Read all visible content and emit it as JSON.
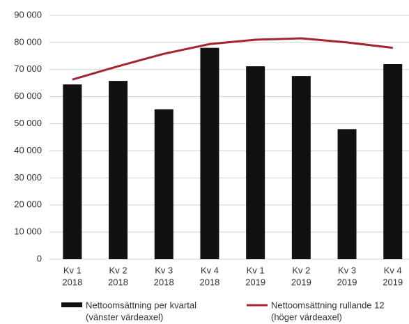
{
  "chart_data": {
    "type": "bar_line",
    "categories": [
      [
        "Kv 1",
        "2018"
      ],
      [
        "Kv 2",
        "2018"
      ],
      [
        "Kv 3",
        "2018"
      ],
      [
        "Kv 4",
        "2018"
      ],
      [
        "Kv 1",
        "2019"
      ],
      [
        "Kv 2",
        "2019"
      ],
      [
        "Kv 3",
        "2019"
      ],
      [
        "Kv 4",
        "2019"
      ]
    ],
    "series": [
      {
        "name": "Nettoomsättning per kvartal",
        "note": "(vänster värdeaxel)",
        "type": "bar",
        "color": "#111111",
        "values": [
          64500,
          65800,
          55300,
          78000,
          71200,
          67600,
          48000,
          72000
        ]
      },
      {
        "name": "Nettoomsättning rullande 12",
        "note": "(höger värdeaxel)",
        "type": "line",
        "color": "#a3262e",
        "values": [
          66300,
          71200,
          75800,
          79400,
          81000,
          81500,
          80000,
          78000
        ]
      }
    ],
    "ylim": [
      0,
      90000
    ],
    "yticks": [
      0,
      {
        "value": 10000,
        "label": "10 000"
      },
      {
        "value": 20000,
        "label": "20 000"
      },
      {
        "value": 30000,
        "label": "30 000"
      },
      {
        "value": 40000,
        "label": "40 000"
      },
      {
        "value": 50000,
        "label": "50 000"
      },
      {
        "value": 60000,
        "label": "60 000"
      },
      {
        "value": 70000,
        "label": "70 000"
      },
      {
        "value": 80000,
        "label": "80 000"
      },
      {
        "value": 90000,
        "label": "90 000"
      }
    ],
    "grid": true
  }
}
